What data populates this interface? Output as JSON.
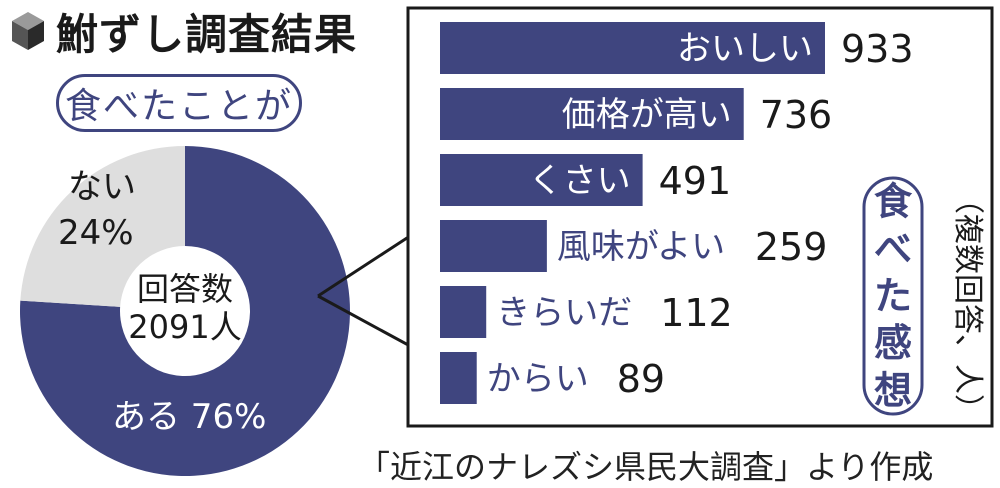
{
  "title": "鮒ずし調査結果",
  "source": "「近江のナレズシ県民大調査」より作成",
  "colors": {
    "accent": "#3f457f",
    "light": "#dedede",
    "ink": "#1a1a1a"
  },
  "icon": "cube-icon",
  "chart_data": [
    {
      "type": "pie",
      "variant": "donut",
      "label": "食べたことが",
      "center_label": "回答数",
      "center_value": "2091人",
      "slices": [
        {
          "name": "ある",
          "value": 76,
          "label": "ある 76%",
          "color": "#3f457f"
        },
        {
          "name": "ない",
          "value": 24,
          "label_name": "ない",
          "label_value": "24%",
          "color": "#dedede"
        }
      ]
    },
    {
      "type": "bar",
      "orientation": "horizontal",
      "title": "食べた感想",
      "note": "（複数回答、人）",
      "categories": [
        "おいしい",
        "価格が高い",
        "くさい",
        "風味がよい",
        "きらいだ",
        "からい"
      ],
      "values": [
        933,
        736,
        491,
        259,
        112,
        89
      ],
      "xlim": [
        0,
        933
      ],
      "color": "#3f457f"
    }
  ]
}
